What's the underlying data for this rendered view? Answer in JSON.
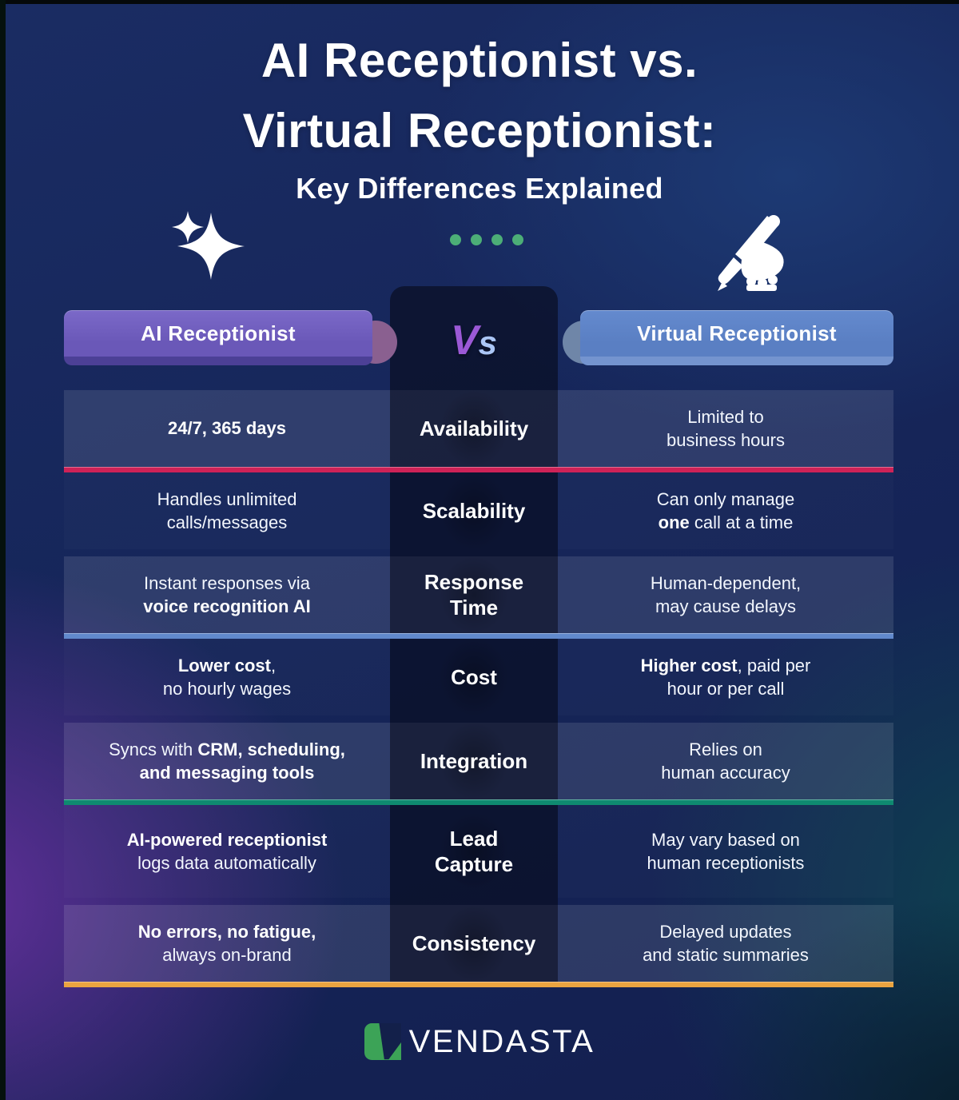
{
  "title": {
    "line1": "AI Receptionist vs.",
    "line2": "Virtual Receptionist:",
    "subtitle": "Key Differences Explained"
  },
  "header": {
    "ai_label": "AI Receptionist",
    "vs_v": "V",
    "vs_s": "s",
    "virtual_label": "Virtual Receptionist"
  },
  "icons": {
    "left": "sparkle-icon",
    "center": "four-green-dots",
    "right": "writing-hand-pen-icon"
  },
  "rows": [
    {
      "category": "Availability",
      "ai": "**24/7, 365 days**",
      "virtual": "Limited to\nbusiness hours",
      "divider_color": "#ce2257"
    },
    {
      "category": "Scalability",
      "ai": "Handles unlimited\ncalls/messages",
      "virtual": "Can only manage\n**one** call at a time",
      "divider_color": null
    },
    {
      "category": "Response\nTime",
      "ai": "Instant responses via\n**voice recognition AI**",
      "virtual": "Human-dependent,\nmay cause delays",
      "divider_color": "#6189cc"
    },
    {
      "category": "Cost",
      "ai": "**Lower cost**,\nno hourly wages",
      "virtual": "**Higher cost**, paid per\nhour or per call",
      "divider_color": null
    },
    {
      "category": "Integration",
      "ai": "Syncs with **CRM, scheduling,**\n**and messaging tools**",
      "virtual": "Relies on\nhuman accuracy",
      "divider_color": "#0f8a70"
    },
    {
      "category": "Lead\nCapture",
      "ai": "**AI-powered receptionist**\nlogs data automatically",
      "virtual": "May vary based on\nhuman receptionists",
      "divider_color": null
    },
    {
      "category": "Consistency",
      "ai": "**No errors, no fatigue,**\nalways on-brand",
      "virtual": "Delayed updates\nand static summaries",
      "divider_color": "#eba440"
    }
  ],
  "footer": {
    "brand": "VENDASTA"
  },
  "colors": {
    "background_navy": "#16265a",
    "background_purple": "#63309b",
    "background_teal": "#0e4350",
    "pill_ai_purple": "#6a58b8",
    "pill_virtual_blue": "#5a7fc3",
    "vs_v_purple": "#9b59d6",
    "vs_s_blue": "#abc6f6",
    "accent_red": "#ce2257",
    "accent_blue": "#6189cc",
    "accent_teal": "#0f8a70",
    "accent_orange": "#eba440",
    "dots_green": "#4cae77",
    "brand_green": "#3ca357"
  }
}
